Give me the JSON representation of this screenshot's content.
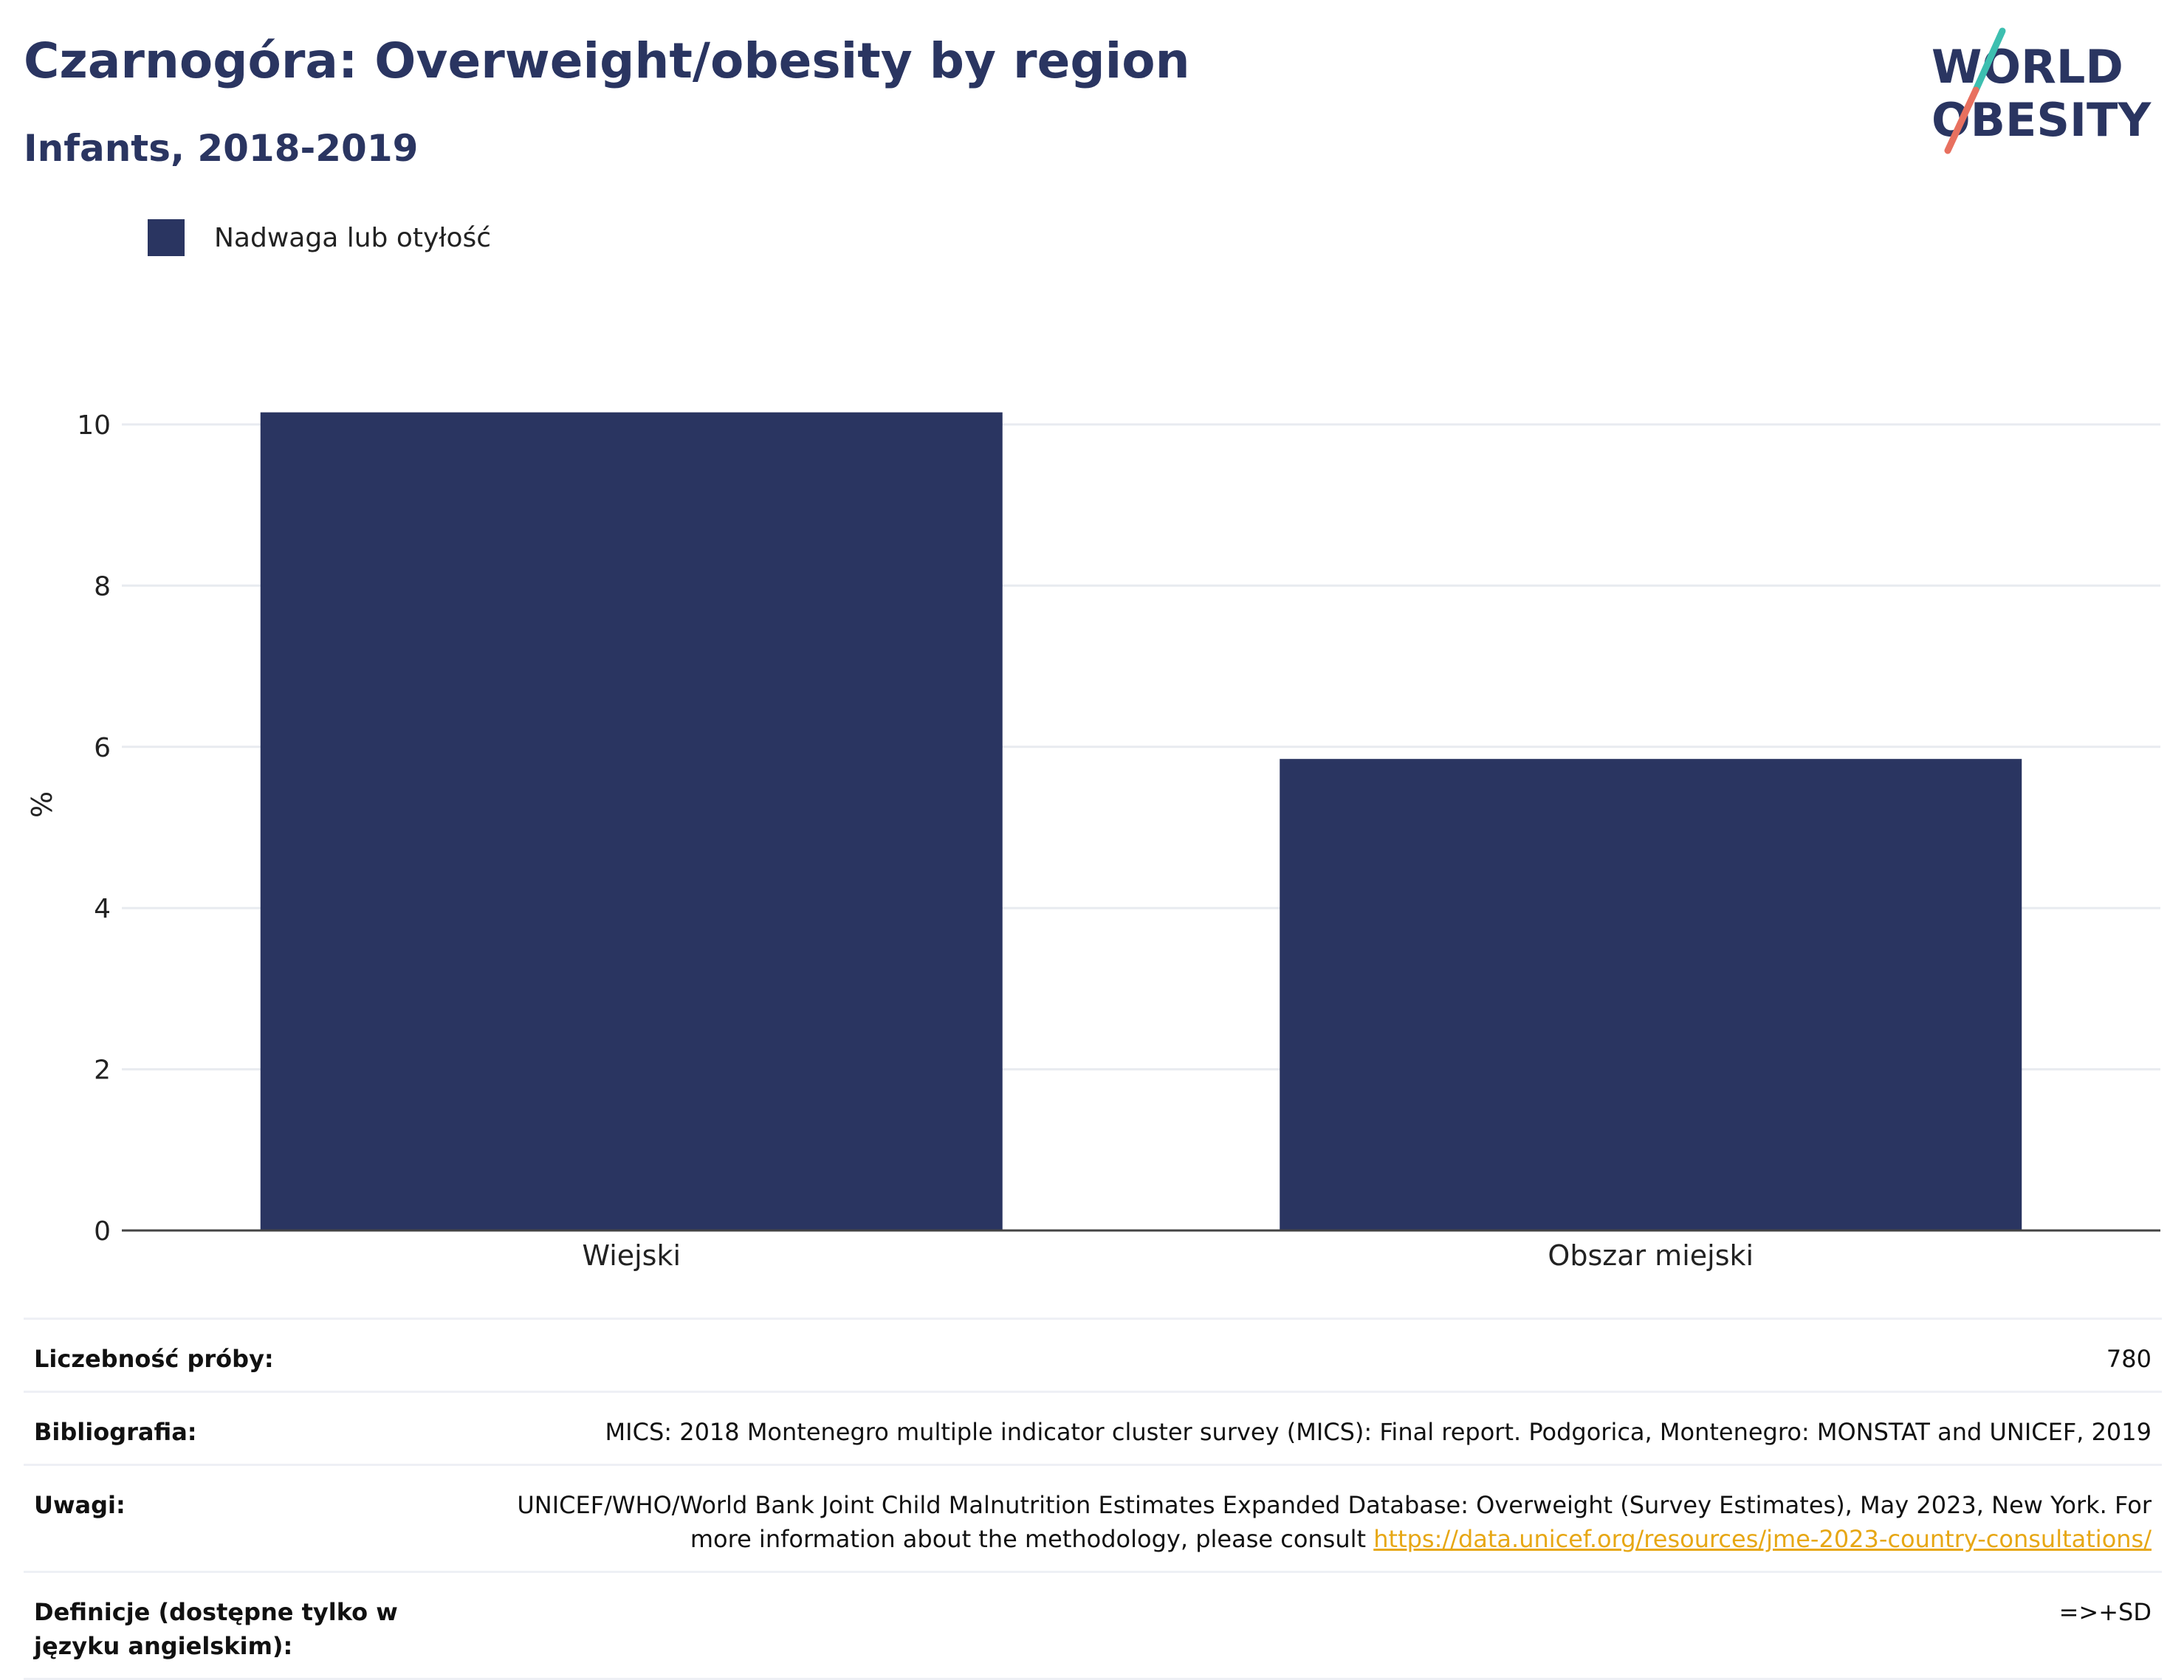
{
  "header": {
    "title": "Czarnogóra: Overweight/obesity by region",
    "subtitle": "Infants, 2018-2019"
  },
  "logo": {
    "line1": "WORLD",
    "line2": "OBESITY",
    "colors": {
      "text": "#2a3561",
      "slash_top": "#3dbfb0",
      "slash_bottom": "#e8705f"
    }
  },
  "colors": {
    "bar": "#2a3561",
    "grid": "#e8ebf0",
    "axis": "#444444",
    "link": "#e7a714"
  },
  "chart_data": {
    "type": "bar",
    "categories": [
      "Wiejski",
      "Obszar miejski"
    ],
    "series": [
      {
        "name": "Nadwaga lub otyłość",
        "values": [
          10.15,
          5.85
        ]
      }
    ],
    "ylabel": "%",
    "ylim": [
      0,
      10.8
    ],
    "yticks": [
      0,
      2,
      4,
      6,
      8,
      10
    ],
    "grid": true,
    "legend": "top-left"
  },
  "meta": [
    {
      "key": "Liczebność próby:",
      "value": "780"
    },
    {
      "key": "Bibliografia:",
      "value": "MICS: 2018 Montenegro multiple indicator cluster survey (MICS): Final report. Podgorica, Montenegro: MONSTAT and UNICEF, 2019"
    },
    {
      "key": "Uwagi:",
      "value": "UNICEF/WHO/World Bank Joint Child Malnutrition Estimates Expanded Database: Overweight (Survey Estimates), May 2023, New York. For more information about the methodology, please consult",
      "link": "https://data.unicef.org/resources/jme-2023-country-consultations/"
    },
    {
      "key": "Definicje (dostępne tylko w języku angielskim):",
      "value": "=>+SD"
    }
  ]
}
